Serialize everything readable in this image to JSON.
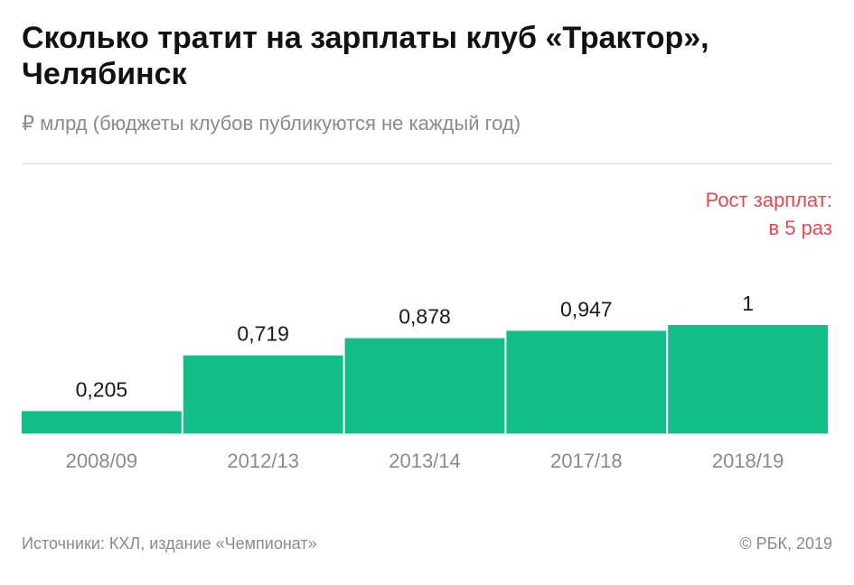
{
  "header": {
    "title": "Сколько тратит на зарплаты клуб «Трактор», Челябинск",
    "subtitle": "₽ млрд (бюджеты клубов публикуются не каждый год)"
  },
  "annotation": {
    "line1": "Рост зарплат:",
    "line2": "в 5 раз"
  },
  "footer": {
    "source": "Источники: КХЛ, издание «Чемпионат»",
    "copyright": "© РБК, 2019"
  },
  "colors": {
    "bar": "#13bd87",
    "accent": "#f0444b",
    "tick_text": "#8a8a8a",
    "value_text": "#1a1a1a"
  },
  "chart_data": {
    "type": "bar",
    "categories": [
      "2008/09",
      "2012/13",
      "2013/14",
      "2017/18",
      "2018/19"
    ],
    "values": [
      0.205,
      0.719,
      0.878,
      0.947,
      1
    ],
    "value_labels": [
      "0,205",
      "0,719",
      "0,878",
      "0,947",
      "1"
    ],
    "title": "Сколько тратит на зарплаты клуб «Трактор», Челябинск",
    "subtitle": "₽ млрд (бюджеты клубов публикуются не каждый год)",
    "xlabel": "",
    "ylabel": "",
    "ylim": [
      0,
      1
    ],
    "grid": false,
    "legend": "none"
  }
}
